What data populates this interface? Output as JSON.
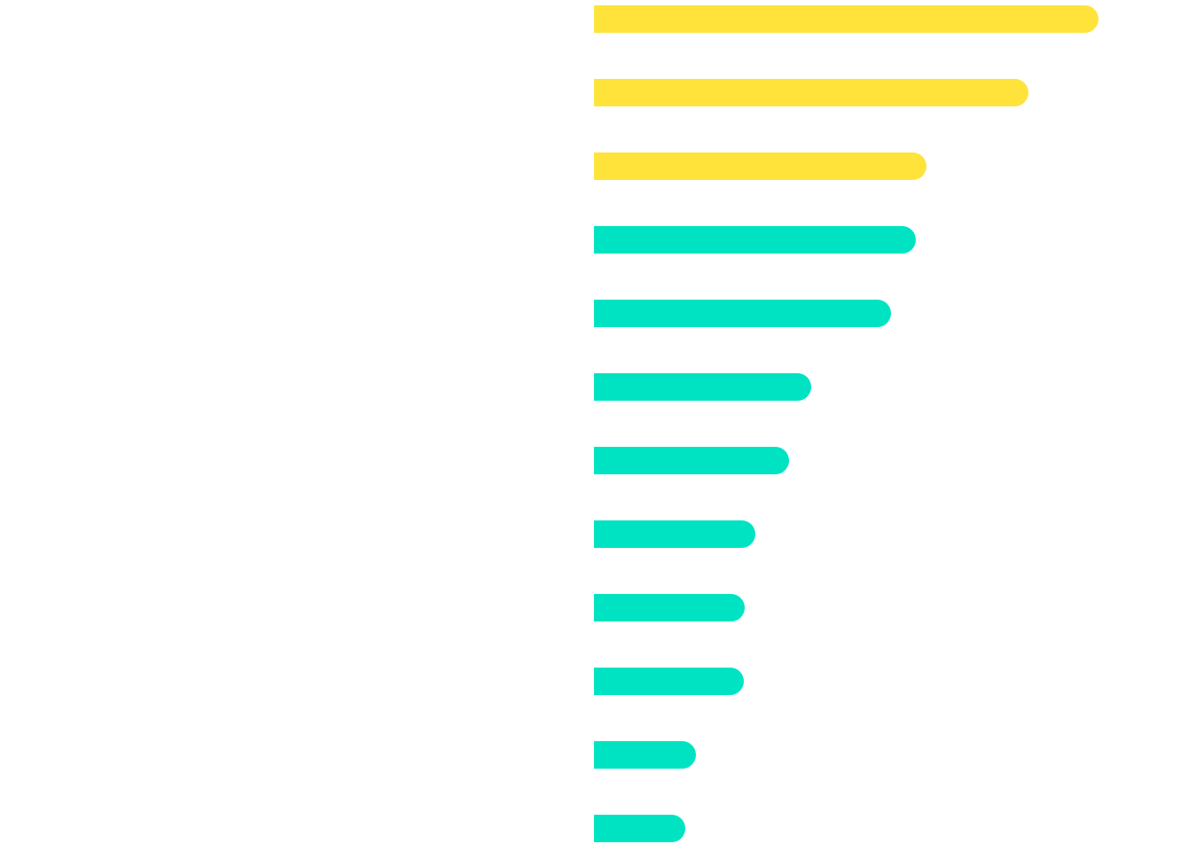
{
  "chart_data": {
    "type": "bar",
    "orientation": "horizontal",
    "title": "",
    "xlabel": "",
    "ylabel": "",
    "categories": [
      "",
      "",
      "",
      "",
      "",
      "",
      "",
      "",
      "",
      "",
      "",
      ""
    ],
    "values": [
      569,
      490,
      375,
      363,
      335,
      245,
      220,
      182,
      170,
      169,
      115,
      103
    ],
    "highlight_count": 3,
    "xlim": [
      0,
      670
    ],
    "grid": false,
    "colors": {
      "highlight": "#FFE33B",
      "default": "#00E3C2"
    }
  }
}
